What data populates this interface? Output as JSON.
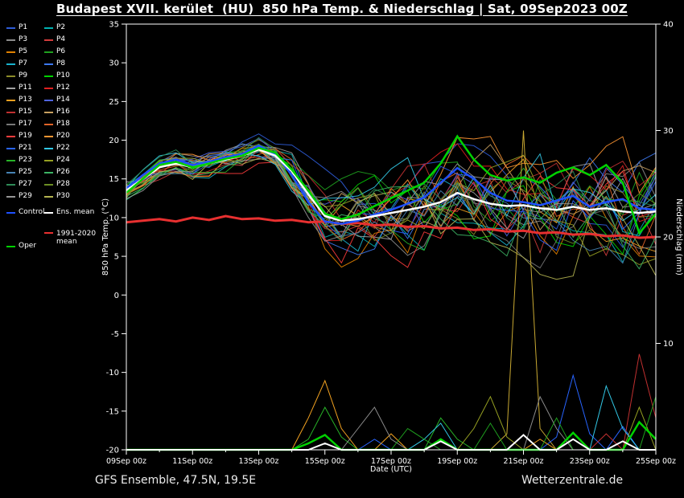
{
  "header": {
    "title": "Budapest XVII. kerület  (HU)  850 hPa Temp. & Niederschlag | Sat, 09Sep2023 00Z"
  },
  "footer": {
    "left": "GFS Ensemble, 47.5N, 19.5E",
    "right": "Wetterzentrale.de"
  },
  "colors": {
    "background": "#000000",
    "frame": "#ffffff",
    "text": "#ffffff",
    "control": "#1e50ff",
    "ens_mean": "#ffffff",
    "oper": "#00d200",
    "climate_mean": "#e83030"
  },
  "legend": {
    "control_label": "Control",
    "ens_mean_label": "Ens. mean",
    "oper_label": "Oper",
    "climate_label": "1991-2020 mean"
  },
  "chart_data": {
    "type": "line",
    "title": "Budapest XVII. kerület  (HU)  850 hPa Temp. & Niederschlag | Sat, 09Sep2023 00Z",
    "xlabel": "Date (UTC)",
    "ylabel_left": "850 hPa Temp. (°C)",
    "ylabel_right": "Niederschlag (mm)",
    "x_range_days": [
      0,
      16
    ],
    "x_step_days": 0.5,
    "x_tick_labels": [
      "09Sep 00z",
      "11Sep 00z",
      "13Sep 00z",
      "15Sep 00z",
      "17Sep 00z",
      "19Sep 00z",
      "21Sep 00z",
      "23Sep 00z",
      "25Sep 00z"
    ],
    "y_left_ticks": [
      -20,
      -15,
      -10,
      -5,
      0,
      5,
      10,
      15,
      20,
      25,
      30,
      35
    ],
    "y_left_range": [
      -20,
      35
    ],
    "y_right_ticks": [
      10,
      20,
      30,
      40
    ],
    "y_right_range": [
      0,
      40
    ],
    "grid": false,
    "legend_position": "left",
    "temperature_series": {
      "ens_mean": {
        "label": "Ens. mean",
        "color": "#ffffff",
        "width": 2.5,
        "values": [
          13.5,
          15,
          16.5,
          17,
          16.5,
          17,
          17.5,
          18,
          18.8,
          18,
          16,
          13,
          10.2,
          9.6,
          9.8,
          10.2,
          10.6,
          11,
          11.4,
          12,
          13.2,
          12.4,
          11.8,
          11.5,
          11.6,
          11.2,
          11,
          11.4,
          11,
          11.2,
          10.8,
          10.6,
          10.8
        ]
      },
      "control": {
        "label": "Control",
        "color": "#1e50ff",
        "width": 2.5,
        "values": [
          13.8,
          15.5,
          17,
          17.5,
          16.8,
          17.2,
          17.8,
          18.2,
          19.3,
          18.2,
          15.5,
          12,
          9.5,
          9.2,
          9.6,
          10.4,
          11,
          11.8,
          12.6,
          14.5,
          16.4,
          15,
          13.2,
          12.2,
          12,
          11.6,
          12.2,
          12.8,
          11.4,
          12,
          12.4,
          11.2,
          11
        ]
      },
      "oper": {
        "label": "Oper",
        "color": "#00d200",
        "width": 2.5,
        "values": [
          13.2,
          15,
          16.8,
          17.2,
          16.5,
          17,
          17.6,
          18,
          19,
          18.4,
          16.2,
          13.5,
          10.5,
          9.8,
          10.4,
          11.5,
          12.5,
          13.5,
          14.5,
          17,
          20.5,
          17.5,
          15.5,
          14.8,
          15.2,
          14.5,
          15.8,
          16.5,
          15.5,
          16.8,
          14.5,
          8,
          10.5
        ]
      },
      "climate_mean": {
        "label": "1991-2020 mean",
        "color": "#e83030",
        "width": 3,
        "values": [
          9.4,
          9.6,
          9.8,
          9.5,
          10,
          9.7,
          10.2,
          9.8,
          9.9,
          9.6,
          9.7,
          9.4,
          9.5,
          9.2,
          9.3,
          9,
          9.1,
          8.8,
          8.9,
          8.6,
          8.7,
          8.4,
          8.5,
          8.2,
          8.3,
          8,
          8.1,
          7.8,
          7.9,
          7.6,
          7.7,
          7.4,
          7.5
        ]
      }
    },
    "ensemble": {
      "note": "30 perturbation members drawn around ens_mean with time-growing spread",
      "spread": [
        1.2,
        1.2,
        1.2,
        1.3,
        1.3,
        1.4,
        1.4,
        1.5,
        1.5,
        1.8,
        2.5,
        3.2,
        3.8,
        4,
        4.2,
        4.4,
        4.6,
        4.8,
        5,
        5.2,
        5.4,
        5.4,
        5.5,
        5.6,
        5.8,
        5.8,
        6,
        6,
        6.2,
        6.2,
        6.4,
        6.4,
        6.5
      ],
      "members": [
        {
          "label": "P1",
          "color": "#2e5cd8"
        },
        {
          "label": "P2",
          "color": "#00b2b2"
        },
        {
          "label": "P3",
          "color": "#8c8c8c"
        },
        {
          "label": "P4",
          "color": "#d23c3c"
        },
        {
          "label": "P5",
          "color": "#e08000"
        },
        {
          "label": "P6",
          "color": "#1fa01f"
        },
        {
          "label": "P7",
          "color": "#19b2cc"
        },
        {
          "label": "P8",
          "color": "#3c78f0"
        },
        {
          "label": "P9",
          "color": "#8c8c28"
        },
        {
          "label": "P10",
          "color": "#00d200"
        },
        {
          "label": "P11",
          "color": "#a0a0a0"
        },
        {
          "label": "P12",
          "color": "#e02020"
        },
        {
          "label": "P13",
          "color": "#f0a020"
        },
        {
          "label": "P14",
          "color": "#5064e0"
        },
        {
          "label": "P15",
          "color": "#c03030"
        },
        {
          "label": "P16",
          "color": "#c8a060"
        },
        {
          "label": "P17",
          "color": "#787878"
        },
        {
          "label": "P18",
          "color": "#e06428"
        },
        {
          "label": "P19",
          "color": "#ff3c3c"
        },
        {
          "label": "P20",
          "color": "#ff9632"
        },
        {
          "label": "P21",
          "color": "#2864ff"
        },
        {
          "label": "P22",
          "color": "#32c8e6"
        },
        {
          "label": "P23",
          "color": "#28b428"
        },
        {
          "label": "P24",
          "color": "#96a022"
        },
        {
          "label": "P25",
          "color": "#4682b4"
        },
        {
          "label": "P26",
          "color": "#3cb464"
        },
        {
          "label": "P27",
          "color": "#2e8b57"
        },
        {
          "label": "P28",
          "color": "#6b8e23"
        },
        {
          "label": "P29",
          "color": "#969696"
        },
        {
          "label": "P30",
          "color": "#b4b450"
        }
      ]
    },
    "precipitation_series": [
      {
        "name": "precip-m16",
        "color": "#c8a832",
        "width": 1,
        "spikes": [
          [
            11.5,
            1.5
          ],
          [
            12,
            30
          ],
          [
            12.5,
            2
          ]
        ]
      },
      {
        "name": "precip-m21",
        "color": "#2864ff",
        "width": 1,
        "spikes": [
          [
            7.5,
            1
          ],
          [
            13,
            1.2
          ],
          [
            13.5,
            7
          ],
          [
            14,
            1.5
          ],
          [
            15,
            2.2
          ]
        ]
      },
      {
        "name": "precip-m19",
        "color": "#c03030",
        "width": 1,
        "spikes": [
          [
            14.5,
            1.5
          ],
          [
            15.5,
            9
          ],
          [
            16,
            3
          ]
        ]
      },
      {
        "name": "precip-m23",
        "color": "#28b428",
        "width": 1,
        "spikes": [
          [
            5.5,
            1
          ],
          [
            6,
            4
          ],
          [
            6.5,
            1.2
          ],
          [
            9.5,
            3
          ],
          [
            10,
            1
          ]
        ]
      },
      {
        "name": "precip-m13",
        "color": "#f0a020",
        "width": 1,
        "spikes": [
          [
            5.5,
            3
          ],
          [
            6,
            6.5
          ],
          [
            6.5,
            2
          ],
          [
            8,
            1.5
          ],
          [
            12.5,
            1
          ]
        ]
      },
      {
        "name": "precip-m3",
        "color": "#8c8c8c",
        "width": 1,
        "spikes": [
          [
            7,
            2
          ],
          [
            7.5,
            4
          ],
          [
            8,
            1
          ],
          [
            12.5,
            5
          ],
          [
            13,
            2
          ]
        ]
      },
      {
        "name": "precip-m22",
        "color": "#32c8e6",
        "width": 1,
        "spikes": [
          [
            9,
            1
          ],
          [
            9.5,
            2.5
          ],
          [
            14.5,
            6
          ],
          [
            15,
            2
          ]
        ]
      },
      {
        "name": "precip-m24",
        "color": "#96a022",
        "width": 1,
        "spikes": [
          [
            10.5,
            2
          ],
          [
            11,
            5
          ],
          [
            11.5,
            1.2
          ],
          [
            15.5,
            4
          ]
        ]
      },
      {
        "name": "precip-m6",
        "color": "#1fa01f",
        "width": 1,
        "spikes": [
          [
            8.5,
            2
          ],
          [
            9,
            1
          ],
          [
            11,
            2.5
          ],
          [
            13,
            3
          ],
          [
            16,
            5
          ]
        ]
      },
      {
        "name": "precip-oper",
        "color": "#00d200",
        "width": 2.5,
        "spikes": [
          [
            5.5,
            0.6
          ],
          [
            6,
            1.4
          ],
          [
            9.5,
            1
          ],
          [
            13.5,
            1.6
          ],
          [
            15.5,
            2.6
          ],
          [
            16,
            1
          ]
        ]
      },
      {
        "name": "precip-mean",
        "color": "#ffffff",
        "width": 2,
        "spikes": [
          [
            6,
            0.6
          ],
          [
            9.5,
            0.8
          ],
          [
            12,
            1.4
          ],
          [
            13.5,
            1
          ],
          [
            15,
            0.8
          ]
        ]
      }
    ]
  }
}
